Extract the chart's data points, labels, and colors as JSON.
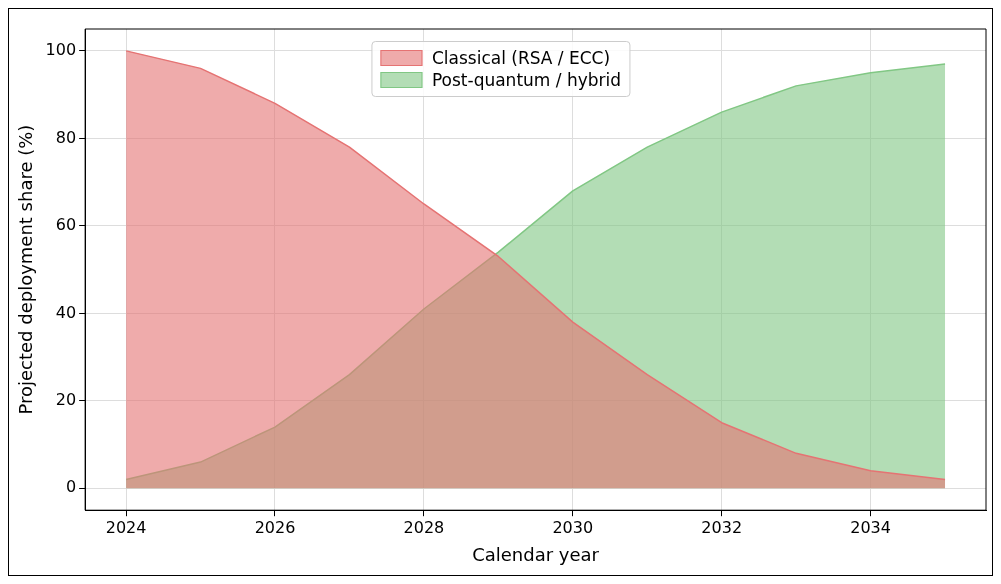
{
  "chart_data": {
    "type": "area",
    "xlabel": "Calendar year",
    "ylabel": "Projected deployment share (%)",
    "x": [
      2024,
      2025,
      2026,
      2027,
      2028,
      2029,
      2030,
      2031,
      2032,
      2033,
      2034,
      2035
    ],
    "series": [
      {
        "name": "Classical (RSA / ECC)",
        "color": "#e57373",
        "values": [
          100,
          96,
          88,
          78,
          65,
          53,
          38,
          26,
          15,
          8,
          4,
          2
        ]
      },
      {
        "name": "Post-quantum / hybrid",
        "color": "#81c784",
        "values": [
          2,
          6,
          14,
          26,
          41,
          54,
          68,
          78,
          86,
          92,
          95,
          97
        ]
      }
    ],
    "xlim": [
      2023.45,
      2035.55
    ],
    "xticks": [
      2024,
      2026,
      2028,
      2030,
      2032,
      2034
    ],
    "ylim": [
      -5,
      105
    ],
    "yticks": [
      0,
      20,
      40,
      60,
      80,
      100
    ],
    "grid": true,
    "legend": "top"
  }
}
